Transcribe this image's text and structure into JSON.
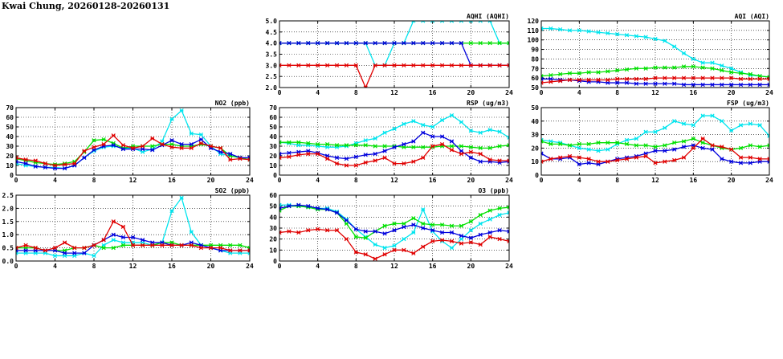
{
  "page": {
    "title": "Kwai Chung, 20260128-20260131"
  },
  "colors": {
    "cyan": "#00e5ee",
    "green": "#00e000",
    "blue": "#0000dd",
    "red": "#e00000"
  },
  "chart_data": [
    {
      "id": "aqhi",
      "type": "line",
      "title": "AQHI (AQHI)",
      "xlim": [
        0,
        24
      ],
      "xticks": [
        0,
        4,
        8,
        12,
        16,
        20,
        24
      ],
      "ylim": [
        2.0,
        5.0
      ],
      "yticks": [
        2.0,
        2.5,
        3.0,
        3.5,
        4.0,
        4.5,
        5.0
      ],
      "ytick_decimals": 1,
      "grid": true,
      "series": [
        {
          "color": "cyan",
          "values": [
            4,
            4,
            4,
            4,
            4,
            4,
            4,
            4,
            4,
            4,
            3,
            3,
            4,
            4,
            5,
            5,
            5,
            5,
            5,
            5,
            5,
            5,
            5,
            4,
            4
          ]
        },
        {
          "color": "green",
          "values": [
            4,
            4,
            4,
            4,
            4,
            4,
            4,
            4,
            4,
            4,
            4,
            4,
            4,
            4,
            4,
            4,
            4,
            4,
            4,
            4,
            4,
            4,
            4,
            4,
            4
          ]
        },
        {
          "color": "blue",
          "values": [
            4,
            4,
            4,
            4,
            4,
            4,
            4,
            4,
            4,
            4,
            4,
            4,
            4,
            4,
            4,
            4,
            4,
            4,
            4,
            4,
            3,
            3,
            3,
            3,
            3
          ]
        },
        {
          "color": "red",
          "values": [
            3,
            3,
            3,
            3,
            3,
            3,
            3,
            3,
            3,
            2,
            3,
            3,
            3,
            3,
            3,
            3,
            3,
            3,
            3,
            3,
            3,
            3,
            3,
            3,
            3
          ]
        }
      ]
    },
    {
      "id": "aqi",
      "type": "line",
      "title": "AQI (AQI)",
      "xlim": [
        0,
        24
      ],
      "xticks": [
        0,
        4,
        8,
        12,
        16,
        20,
        24
      ],
      "ylim": [
        50,
        120
      ],
      "yticks": [
        50,
        60,
        70,
        80,
        90,
        100,
        110,
        120
      ],
      "ytick_decimals": 0,
      "grid": true,
      "series": [
        {
          "color": "cyan",
          "values": [
            112,
            112,
            111,
            110,
            110,
            109,
            108,
            107,
            106,
            105,
            104,
            103,
            101,
            99,
            93,
            86,
            80,
            76,
            76,
            73,
            70,
            66,
            63,
            62,
            61
          ]
        },
        {
          "color": "green",
          "values": [
            62,
            63,
            64,
            65,
            65,
            66,
            66,
            67,
            68,
            69,
            70,
            70,
            71,
            71,
            71,
            72,
            72,
            71,
            70,
            68,
            66,
            65,
            64,
            62,
            61
          ]
        },
        {
          "color": "blue",
          "values": [
            59,
            59,
            58,
            58,
            57,
            56,
            56,
            55,
            55,
            55,
            54,
            54,
            54,
            54,
            54,
            53,
            53,
            53,
            53,
            53,
            53,
            53,
            53,
            53,
            53
          ]
        },
        {
          "color": "red",
          "values": [
            55,
            56,
            57,
            58,
            58,
            58,
            58,
            58,
            59,
            59,
            59,
            59,
            60,
            60,
            60,
            60,
            60,
            60,
            60,
            60,
            60,
            59,
            59,
            59,
            59
          ]
        }
      ]
    },
    {
      "id": "no2",
      "type": "line",
      "title": "NO2 (ppb)",
      "xlim": [
        0,
        24
      ],
      "xticks": [
        0,
        4,
        8,
        12,
        16,
        20,
        24
      ],
      "ylim": [
        0,
        70
      ],
      "yticks": [
        0,
        10,
        20,
        30,
        40,
        50,
        60,
        70
      ],
      "ytick_decimals": 0,
      "grid": true,
      "series": [
        {
          "color": "cyan",
          "values": [
            12,
            10,
            9,
            8,
            8,
            7,
            10,
            18,
            25,
            29,
            30,
            28,
            28,
            24,
            27,
            35,
            58,
            67,
            43,
            42,
            30,
            22,
            20,
            18,
            16
          ]
        },
        {
          "color": "green",
          "values": [
            17,
            15,
            13,
            12,
            11,
            12,
            14,
            24,
            36,
            37,
            33,
            28,
            30,
            30,
            30,
            32,
            32,
            30,
            30,
            32,
            30,
            28,
            20,
            18,
            16
          ]
        },
        {
          "color": "blue",
          "values": [
            14,
            12,
            9,
            8,
            7,
            7,
            10,
            18,
            26,
            30,
            31,
            27,
            27,
            27,
            26,
            31,
            36,
            32,
            32,
            37,
            28,
            24,
            22,
            18,
            18
          ]
        },
        {
          "color": "red",
          "values": [
            18,
            16,
            15,
            12,
            10,
            11,
            12,
            25,
            29,
            32,
            41,
            31,
            28,
            30,
            38,
            32,
            29,
            28,
            28,
            33,
            30,
            28,
            16,
            17,
            16
          ]
        }
      ]
    },
    {
      "id": "rsp",
      "type": "line",
      "title": "RSP (ug/m3)",
      "xlim": [
        0,
        24
      ],
      "xticks": [
        0,
        4,
        8,
        12,
        16,
        20,
        24
      ],
      "ylim": [
        0,
        70
      ],
      "yticks": [
        0,
        10,
        20,
        30,
        40,
        50,
        60,
        70
      ],
      "ytick_decimals": 0,
      "grid": true,
      "series": [
        {
          "color": "cyan",
          "values": [
            34,
            33,
            31,
            31,
            30,
            29,
            29,
            30,
            33,
            36,
            38,
            44,
            48,
            53,
            56,
            52,
            50,
            57,
            62,
            55,
            46,
            44,
            47,
            45,
            39
          ]
        },
        {
          "color": "green",
          "values": [
            34,
            34,
            34,
            33,
            32,
            32,
            31,
            31,
            31,
            31,
            30,
            30,
            30,
            29,
            29,
            29,
            29,
            30,
            30,
            30,
            29,
            28,
            28,
            30,
            31
          ]
        },
        {
          "color": "blue",
          "values": [
            22,
            23,
            24,
            25,
            23,
            20,
            18,
            17,
            19,
            21,
            22,
            25,
            29,
            32,
            35,
            44,
            40,
            40,
            35,
            25,
            18,
            14,
            14,
            13,
            14
          ]
        },
        {
          "color": "red",
          "values": [
            18,
            19,
            21,
            22,
            22,
            17,
            12,
            10,
            10,
            13,
            15,
            18,
            12,
            12,
            14,
            18,
            30,
            32,
            26,
            22,
            24,
            22,
            16,
            15,
            15
          ]
        }
      ]
    },
    {
      "id": "fsp",
      "type": "line",
      "title": "FSP (ug/m3)",
      "xlim": [
        0,
        24
      ],
      "xticks": [
        0,
        4,
        8,
        12,
        16,
        20,
        24
      ],
      "ylim": [
        0,
        50
      ],
      "yticks": [
        0,
        10,
        20,
        30,
        40,
        50
      ],
      "ytick_decimals": 0,
      "grid": true,
      "series": [
        {
          "color": "cyan",
          "values": [
            26,
            25,
            24,
            22,
            20,
            19,
            18,
            19,
            23,
            26,
            27,
            32,
            32,
            35,
            40,
            38,
            37,
            44,
            44,
            40,
            33,
            37,
            38,
            37,
            29
          ]
        },
        {
          "color": "green",
          "values": [
            25,
            23,
            23,
            22,
            23,
            23,
            24,
            24,
            24,
            23,
            22,
            22,
            21,
            22,
            24,
            25,
            27,
            24,
            22,
            20,
            19,
            20,
            22,
            21,
            22
          ]
        },
        {
          "color": "blue",
          "values": [
            16,
            12,
            12,
            13,
            8,
            9,
            8,
            10,
            12,
            13,
            14,
            16,
            18,
            18,
            19,
            21,
            22,
            20,
            19,
            12,
            10,
            9,
            9,
            10,
            10
          ]
        },
        {
          "color": "red",
          "values": [
            10,
            12,
            13,
            14,
            13,
            12,
            10,
            10,
            11,
            12,
            13,
            14,
            9,
            10,
            11,
            13,
            20,
            27,
            22,
            21,
            19,
            13,
            13,
            12,
            12
          ]
        }
      ]
    },
    {
      "id": "so2",
      "type": "line",
      "title": "SO2 (ppb)",
      "xlim": [
        0,
        24
      ],
      "xticks": [
        0,
        4,
        8,
        12,
        16,
        20,
        24
      ],
      "ylim": [
        0.0,
        2.5
      ],
      "yticks": [
        0.0,
        0.5,
        1.0,
        1.5,
        2.0,
        2.5
      ],
      "ytick_decimals": 1,
      "grid": true,
      "series": [
        {
          "color": "cyan",
          "values": [
            0.3,
            0.3,
            0.3,
            0.3,
            0.2,
            0.2,
            0.2,
            0.3,
            0.2,
            0.6,
            0.8,
            0.7,
            0.7,
            0.7,
            0.6,
            0.7,
            1.9,
            2.4,
            1.1,
            0.6,
            0.5,
            0.4,
            0.3,
            0.3,
            0.3
          ]
        },
        {
          "color": "green",
          "values": [
            0.5,
            0.5,
            0.5,
            0.4,
            0.4,
            0.4,
            0.5,
            0.5,
            0.6,
            0.5,
            0.5,
            0.6,
            0.6,
            0.6,
            0.6,
            0.7,
            0.7,
            0.6,
            0.6,
            0.6,
            0.6,
            0.6,
            0.6,
            0.6,
            0.5
          ]
        },
        {
          "color": "blue",
          "values": [
            0.4,
            0.4,
            0.4,
            0.4,
            0.4,
            0.3,
            0.3,
            0.3,
            0.6,
            0.8,
            1.0,
            0.9,
            0.9,
            0.8,
            0.7,
            0.7,
            0.6,
            0.6,
            0.7,
            0.6,
            0.5,
            0.4,
            0.4,
            0.4,
            0.4
          ]
        },
        {
          "color": "red",
          "values": [
            0.5,
            0.6,
            0.5,
            0.4,
            0.5,
            0.7,
            0.5,
            0.5,
            0.6,
            0.8,
            1.5,
            1.3,
            0.6,
            0.6,
            0.6,
            0.6,
            0.6,
            0.6,
            0.6,
            0.5,
            0.5,
            0.5,
            0.4,
            0.4,
            0.4
          ]
        }
      ]
    },
    {
      "id": "o3",
      "type": "line",
      "title": "O3 (ppb)",
      "xlim": [
        0,
        24
      ],
      "xticks": [
        0,
        4,
        8,
        12,
        16,
        20,
        24
      ],
      "ylim": [
        0,
        60
      ],
      "yticks": [
        0,
        10,
        20,
        30,
        40,
        50,
        60
      ],
      "ytick_decimals": 0,
      "grid": true,
      "series": [
        {
          "color": "cyan",
          "values": [
            51,
            51,
            50,
            49,
            48,
            48,
            45,
            38,
            29,
            22,
            15,
            12,
            14,
            20,
            26,
            47,
            27,
            18,
            12,
            20,
            28,
            34,
            38,
            42,
            44
          ]
        },
        {
          "color": "green",
          "values": [
            46,
            50,
            50,
            49,
            47,
            47,
            44,
            34,
            22,
            21,
            27,
            32,
            34,
            34,
            39,
            34,
            33,
            33,
            32,
            32,
            36,
            42,
            46,
            48,
            49
          ]
        },
        {
          "color": "blue",
          "values": [
            48,
            50,
            51,
            50,
            48,
            47,
            44,
            37,
            29,
            27,
            27,
            25,
            28,
            31,
            33,
            30,
            28,
            26,
            26,
            23,
            21,
            24,
            26,
            28,
            27
          ]
        },
        {
          "color": "red",
          "values": [
            26,
            27,
            26,
            28,
            29,
            28,
            28,
            20,
            8,
            6,
            2,
            6,
            10,
            10,
            7,
            13,
            18,
            19,
            18,
            16,
            17,
            15,
            22,
            20,
            18
          ]
        }
      ]
    }
  ]
}
